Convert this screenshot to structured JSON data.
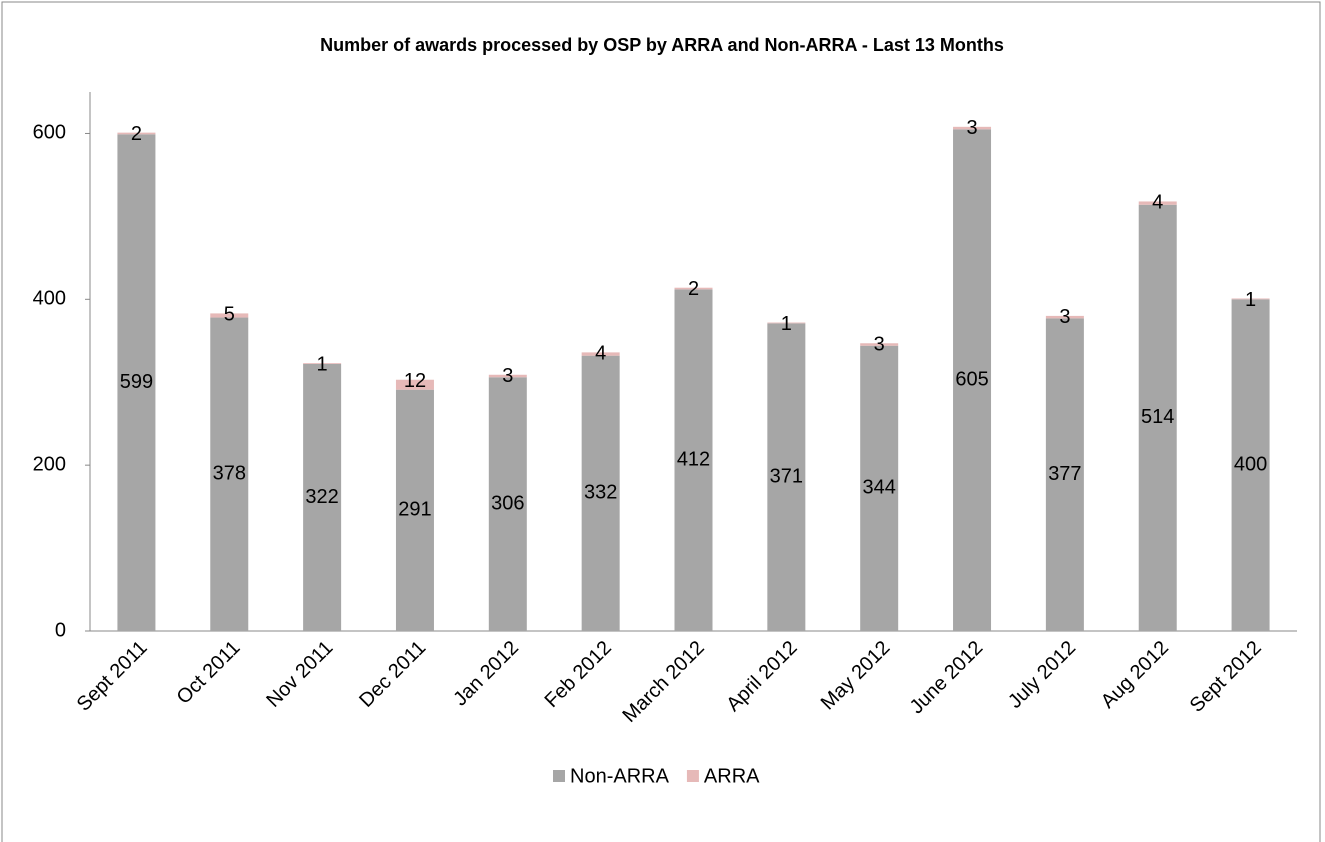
{
  "chart_data": {
    "type": "bar",
    "stacked": true,
    "title": "Number of awards processed by OSP by ARRA and Non-ARRA - Last 13 Months",
    "categories": [
      "Sept 2011",
      "Oct 2011",
      "Nov 2011",
      "Dec 2011",
      "Jan 2012",
      "Feb 2012",
      "March 2012",
      "April 2012",
      "May 2012",
      "June 2012",
      "July 2012",
      "Aug 2012",
      "Sept 2012"
    ],
    "series": [
      {
        "name": "Non-ARRA",
        "color": "#a6a6a6",
        "values": [
          599,
          378,
          322,
          291,
          306,
          332,
          412,
          371,
          344,
          605,
          377,
          514,
          400
        ]
      },
      {
        "name": "ARRA",
        "color": "#e6b9b8",
        "values": [
          2,
          5,
          1,
          12,
          3,
          4,
          2,
          1,
          3,
          3,
          3,
          4,
          1
        ]
      }
    ],
    "ylim": [
      0,
      650
    ],
    "yticks": [
      0,
      200,
      400,
      600
    ],
    "grid": false,
    "legend": "bottom"
  }
}
